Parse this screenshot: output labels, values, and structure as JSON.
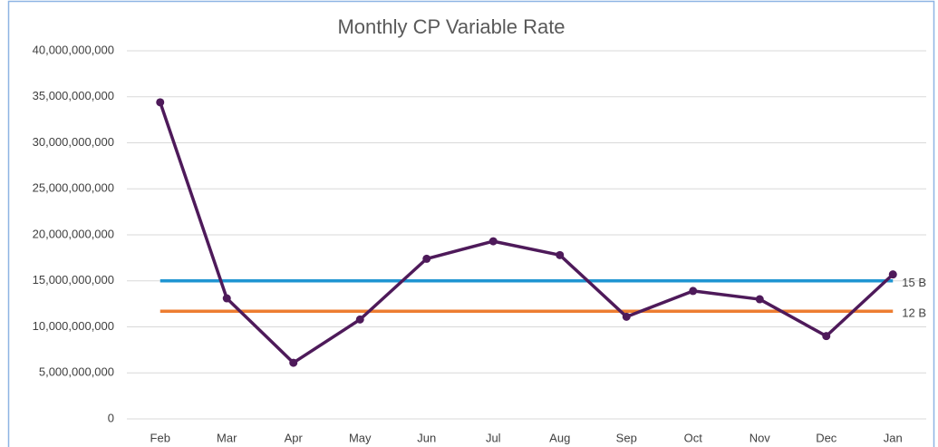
{
  "chart_data": {
    "type": "line",
    "title": "Monthly CP Variable Rate",
    "categories": [
      "Feb",
      "Mar",
      "Apr",
      "May",
      "Jun",
      "Jul",
      "Aug",
      "Sep",
      "Oct",
      "Nov",
      "Dec",
      "Jan"
    ],
    "series": [
      {
        "color": "#4e1a5a",
        "values": [
          34400000000,
          13100000000,
          6100000000,
          10800000000,
          17400000000,
          19300000000,
          17800000000,
          11100000000,
          13900000000,
          13000000000,
          9000000000,
          15700000000
        ]
      }
    ],
    "reference_lines": [
      {
        "value": 15000000000,
        "label": "15 B",
        "color": "#1f95d2"
      },
      {
        "value": 11700000000,
        "label": "12 B",
        "color": "#ed7d31"
      }
    ],
    "ylim": [
      0,
      40000000000
    ],
    "yticks": [
      0,
      {
        "value": 5000000000,
        "label": "5,000,000,000"
      },
      {
        "value": 10000000000,
        "label": "10,000,000,000"
      },
      {
        "value": 15000000000,
        "label": "15,000,000,000"
      },
      {
        "value": 20000000000,
        "label": "20,000,000,000"
      },
      {
        "value": 25000000000,
        "label": "25,000,000,000"
      },
      {
        "value": 30000000000,
        "label": "30,000,000,000"
      },
      {
        "value": 35000000000,
        "label": "35,000,000,000"
      },
      {
        "value": 40000000000,
        "label": "40,000,000,000"
      }
    ],
    "grid": true
  }
}
